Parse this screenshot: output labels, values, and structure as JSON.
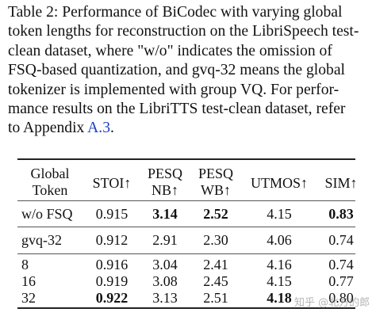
{
  "caption": {
    "lines": [
      "Table 2: Performance of BiCodec with varying global",
      "token lengths for reconstruction on the LibriSpeech test-",
      "clean dataset, where \"w/o\" indicates the omission of",
      "FSQ-based quantization, and gvq-32 means the global",
      "tokenizer is implemented with group VQ. For perfor-",
      "mance results on the LibriTTS test-clean dataset, refer"
    ],
    "last_line_prefix": "to Appendix ",
    "appendix_ref": "A.3",
    "last_line_suffix": "."
  },
  "table": {
    "headers": {
      "global_token": [
        "Global",
        "Token"
      ],
      "stoi": "STOI↑",
      "pesq_nb": [
        "PESQ",
        "NB↑"
      ],
      "pesq_wb": [
        "PESQ",
        "WB↑"
      ],
      "utmos": "UTMOS↑",
      "sim": "SIM↑"
    },
    "rows": [
      {
        "token": "w/o FSQ",
        "stoi": "0.915",
        "pesq_nb": "3.14",
        "pesq_wb": "2.52",
        "utmos": "4.15",
        "sim": "0.83"
      },
      {
        "token": "gvq-32",
        "stoi": "0.912",
        "pesq_nb": "2.91",
        "pesq_wb": "2.30",
        "utmos": "4.06",
        "sim": "0.74"
      },
      {
        "token": "8",
        "stoi": "0.916",
        "pesq_nb": "3.04",
        "pesq_wb": "2.41",
        "utmos": "4.16",
        "sim": "0.74"
      },
      {
        "token": "16",
        "stoi": "0.919",
        "pesq_nb": "3.08",
        "pesq_wb": "2.45",
        "utmos": "4.15",
        "sim": "0.77"
      },
      {
        "token": "32",
        "stoi": "0.922",
        "pesq_nb": "3.13",
        "pesq_wb": "2.51",
        "utmos": "4.18",
        "sim": "0.80"
      }
    ]
  },
  "watermark": "知乎 @北方的郎"
}
